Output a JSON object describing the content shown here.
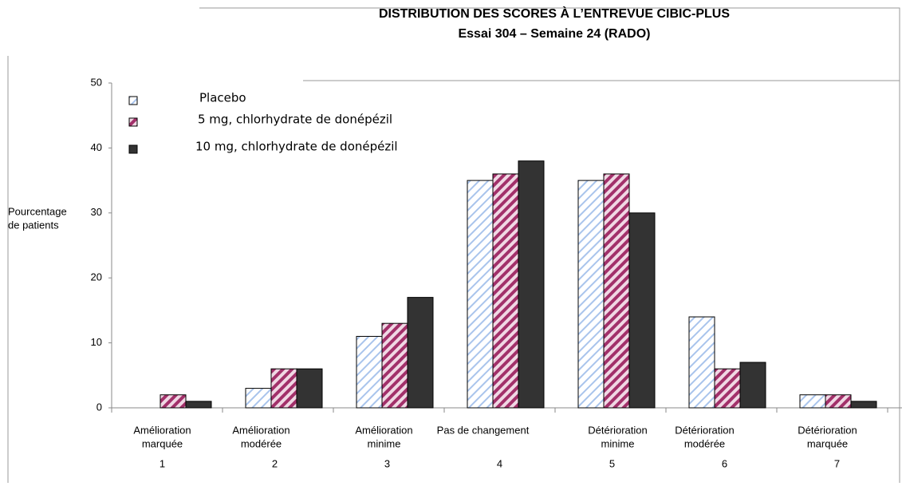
{
  "chart_data": {
    "type": "bar",
    "title": "DISTRIBUTION DES SCORES À L’ENTREVUE CIBIC-PLUS",
    "subtitle": "Essai 304 – Semaine 24 (RADO)",
    "y_label": [
      "Pourcentage",
      "de patients"
    ],
    "categories": [
      [
        "Amélioration",
        "marquée"
      ],
      [
        "Amélioration",
        "modérée"
      ],
      [
        "Amélioration",
        "minime"
      ],
      [
        "Pas de changement"
      ],
      [
        "Détérioration",
        "minime"
      ],
      [
        "Détérioration",
        "modérée"
      ],
      [
        "Détérioration",
        "marquée"
      ]
    ],
    "category_numbers": [
      1,
      2,
      3,
      4,
      5,
      6,
      7
    ],
    "series": [
      {
        "name": "Placebo",
        "color": "#a9c4ec",
        "fill_style": "hatched",
        "values": [
          0,
          3,
          11,
          35,
          35,
          14,
          2
        ]
      },
      {
        "name": "5 mg, chlorhydrate de donépézil",
        "color": "#a2306a",
        "fill_style": "hatched",
        "values": [
          2,
          6,
          13,
          36,
          36,
          6,
          2
        ]
      },
      {
        "name": "10 mg, chlorhydrate de donépézil",
        "color": "#333333",
        "fill_style": "solid",
        "values": [
          1,
          6,
          17,
          38,
          30,
          7,
          1
        ]
      }
    ],
    "ylim": [
      0,
      50
    ],
    "yticks": [
      0,
      10,
      20,
      30,
      40,
      50
    ],
    "grid": false,
    "legend": "top-left"
  }
}
